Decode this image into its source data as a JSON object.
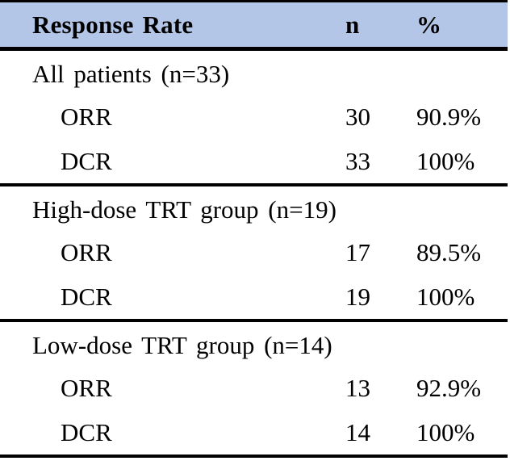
{
  "table": {
    "header": {
      "label": "Response Rate",
      "n": "n",
      "pct": "%"
    },
    "sections": [
      {
        "title": "All patients (n=33)",
        "rows": [
          {
            "label": "ORR",
            "n": "30",
            "pct": "90.9%"
          },
          {
            "label": "DCR",
            "n": "33",
            "pct": "100%"
          }
        ]
      },
      {
        "title": "High-dose TRT group (n=19)",
        "rows": [
          {
            "label": "ORR",
            "n": "17",
            "pct": "89.5%"
          },
          {
            "label": "DCR",
            "n": "19",
            "pct": "100%"
          }
        ]
      },
      {
        "title": "Low-dose TRT group (n=14)",
        "rows": [
          {
            "label": "ORR",
            "n": "13",
            "pct": "92.9%"
          },
          {
            "label": "DCR",
            "n": "14",
            "pct": "100%"
          }
        ]
      }
    ],
    "colors": {
      "header_bg": "#b4c6e7",
      "border": "#000000",
      "text": "#000000"
    }
  },
  "chart_data": {
    "type": "table",
    "title": "Response Rate",
    "columns": [
      "Response Rate",
      "n",
      "%"
    ],
    "groups": [
      {
        "group": "All patients (n=33)",
        "rows": [
          [
            "ORR",
            30,
            "90.9%"
          ],
          [
            "DCR",
            33,
            "100%"
          ]
        ]
      },
      {
        "group": "High-dose TRT group (n=19)",
        "rows": [
          [
            "ORR",
            17,
            "89.5%"
          ],
          [
            "DCR",
            19,
            "100%"
          ]
        ]
      },
      {
        "group": "Low-dose TRT group (n=14)",
        "rows": [
          [
            "ORR",
            13,
            "92.9%"
          ],
          [
            "DCR",
            14,
            "100%"
          ]
        ]
      }
    ]
  }
}
